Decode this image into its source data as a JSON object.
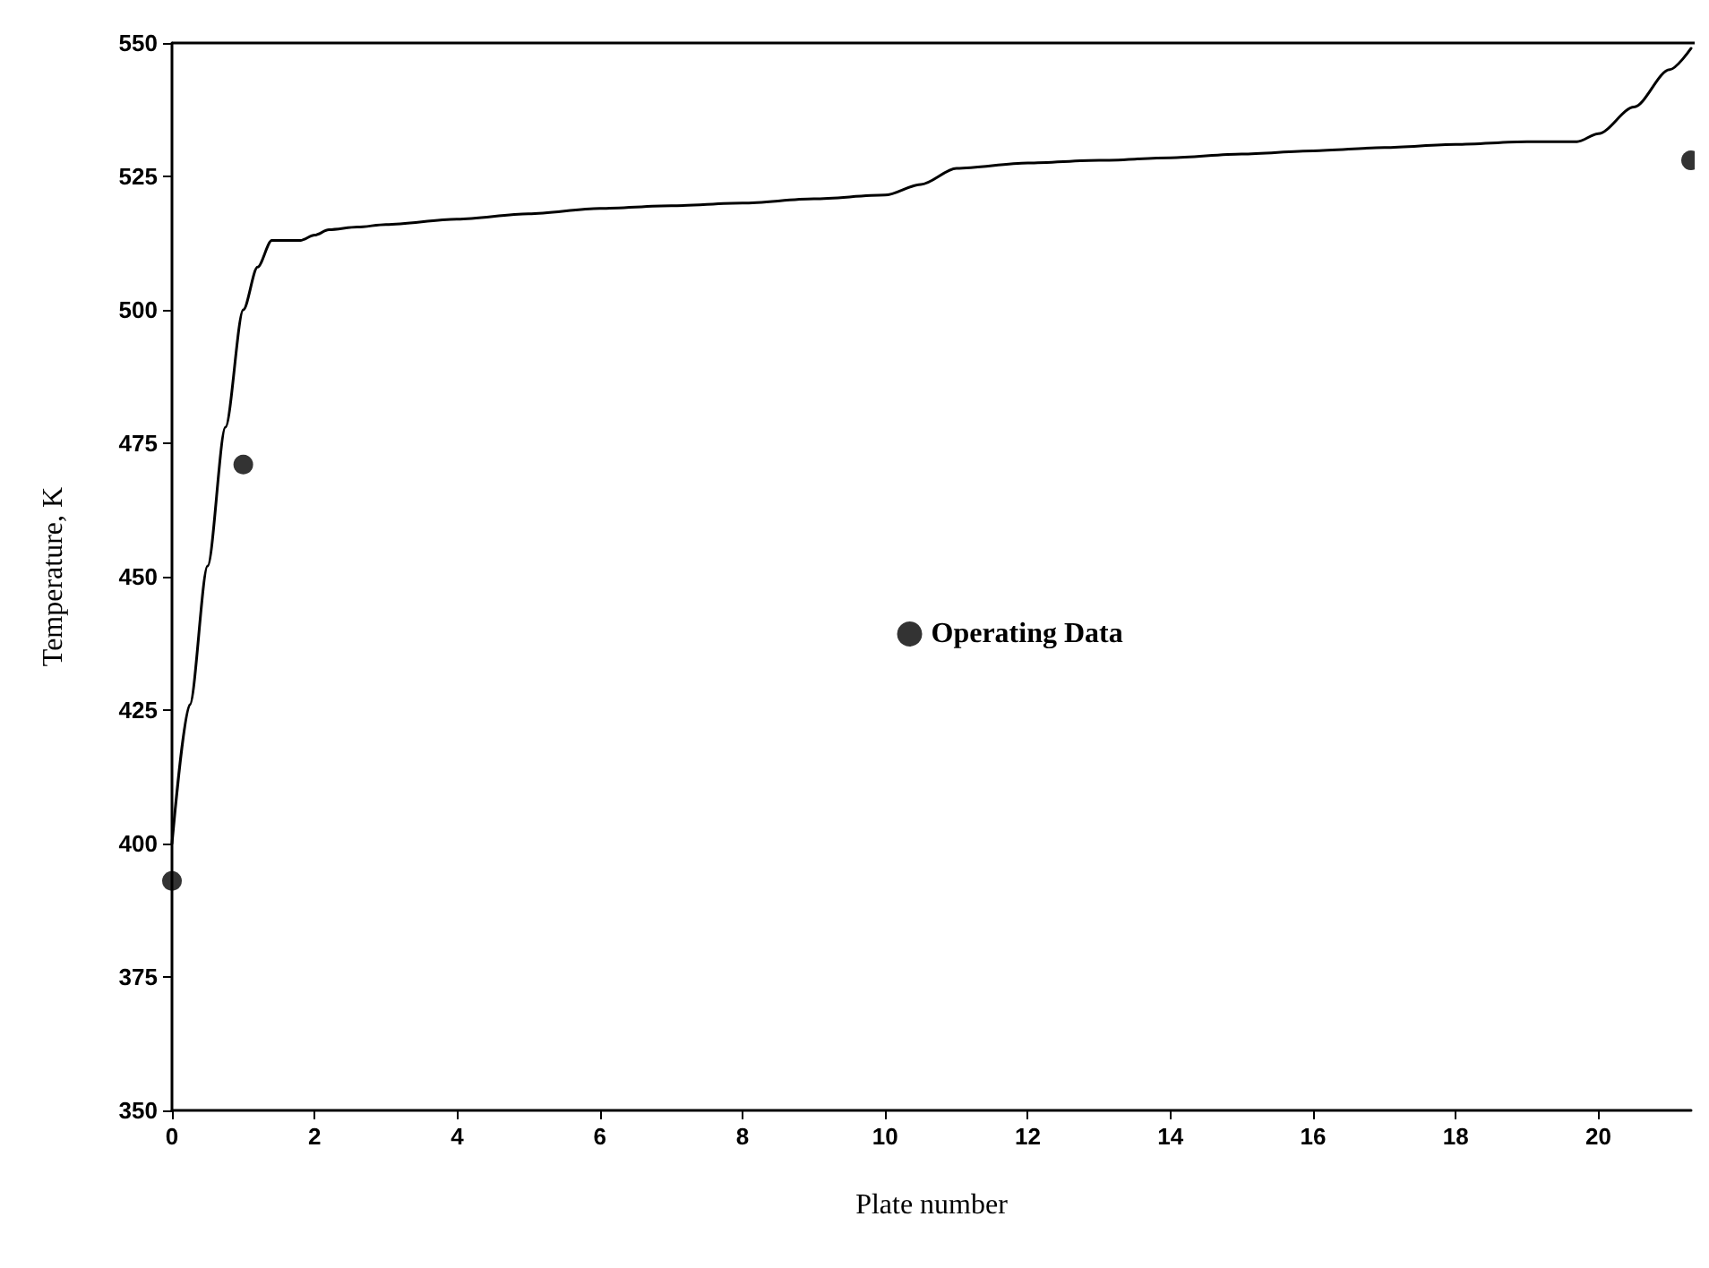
{
  "chart_data": {
    "type": "line",
    "xlabel": "Plate number",
    "ylabel": "Temperature, K",
    "xlim": [
      0,
      21.3
    ],
    "xticks": [
      0,
      2,
      4,
      6,
      8,
      10,
      12,
      14,
      16,
      18,
      20
    ],
    "ylim": [
      350,
      550
    ],
    "yticks": [
      350,
      375,
      400,
      425,
      450,
      475,
      500,
      525,
      550
    ],
    "grid": false,
    "legend": "right",
    "series": [
      {
        "color": "#000000",
        "marker": "none",
        "x": [
          0,
          0.25,
          0.5,
          0.75,
          1,
          1.2,
          1.4,
          1.6,
          1.8,
          2,
          2.2,
          2.6,
          3,
          4,
          5,
          6,
          7,
          8,
          9,
          10,
          10.5,
          11,
          12,
          13,
          14,
          15,
          16,
          17,
          18,
          19,
          19.7,
          20,
          20.5,
          21,
          21.3
        ],
        "values": [
          400,
          426,
          452,
          478,
          500,
          508,
          513,
          513,
          513,
          514,
          515,
          515.5,
          516,
          517,
          518,
          519,
          519.5,
          520,
          520.8,
          521.5,
          523.5,
          526.5,
          527.5,
          528,
          528.5,
          529.2,
          529.8,
          530.4,
          531,
          531.5,
          531.5,
          533,
          538,
          545,
          549
        ]
      },
      {
        "type": "scatter",
        "name": "Operating Data",
        "color": "#000000",
        "marker": "circle",
        "x": [
          0,
          1,
          21.3
        ],
        "values": [
          393,
          471,
          528
        ]
      }
    ]
  }
}
